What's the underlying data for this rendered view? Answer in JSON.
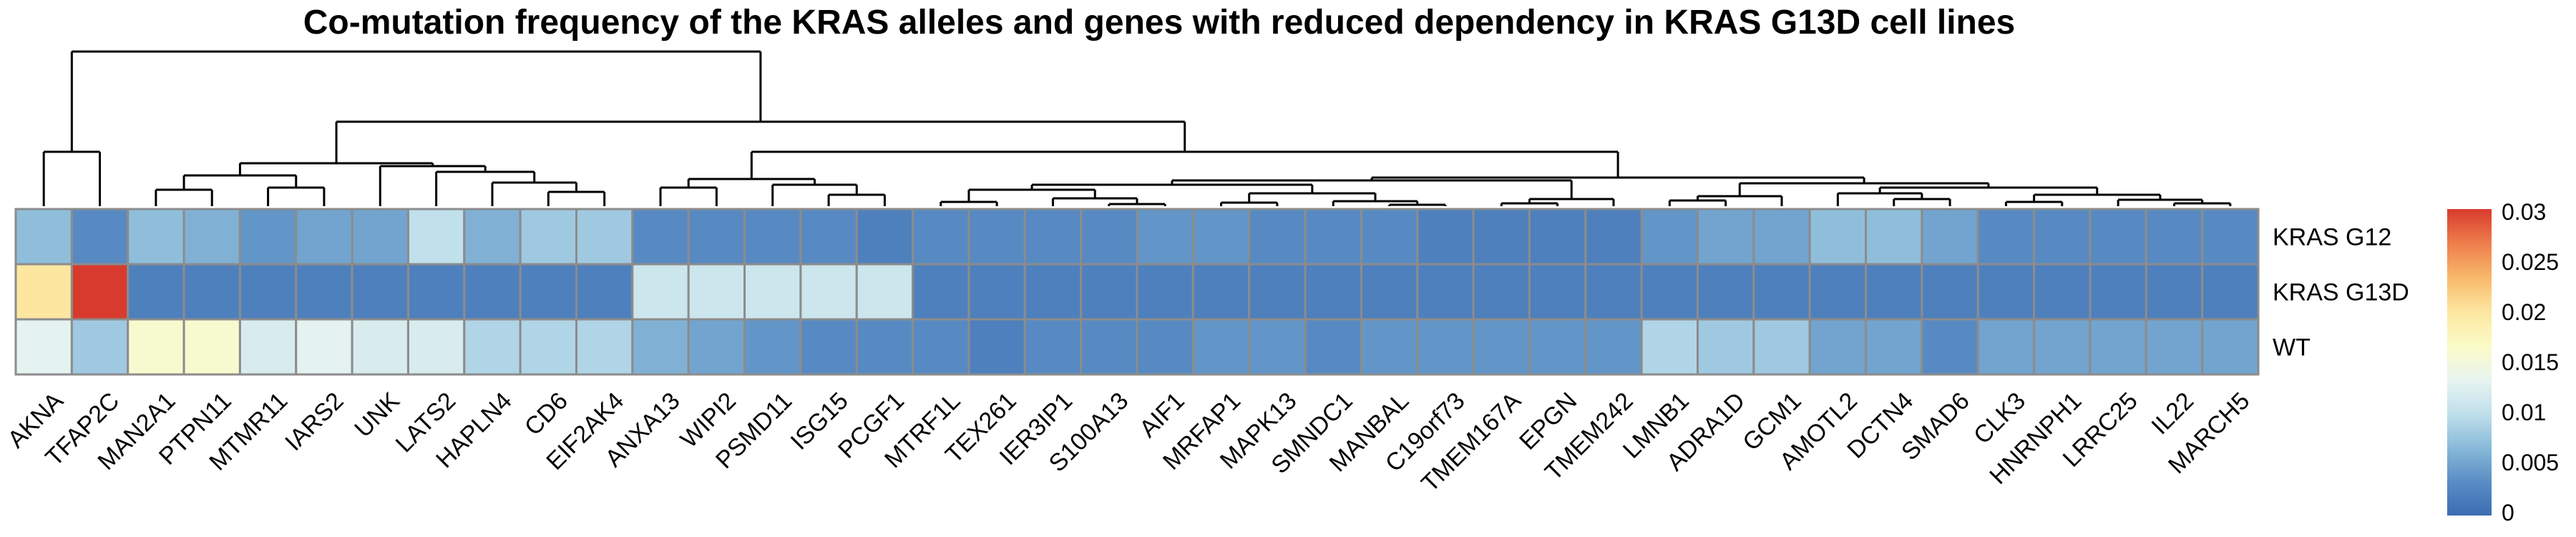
{
  "chart_data": {
    "type": "heatmap",
    "title": "Co-mutation frequency of the KRAS alleles and genes with reduced dependency in KRAS G13D cell lines",
    "rows": [
      "KRAS G12",
      "KRAS G13D",
      "WT"
    ],
    "columns": [
      "AKNA",
      "TFAP2C",
      "MAN2A1",
      "PTPN11",
      "MTMR11",
      "IARS2",
      "UNK",
      "LATS2",
      "HAPLN4",
      "CD6",
      "EIF2AK4",
      "ANXA13",
      "WIPI2",
      "PSMD11",
      "ISG15",
      "PCGF1",
      "MTRF1L",
      "TEX261",
      "IER3IP1",
      "S100A13",
      "AIF1",
      "MRFAP1",
      "MAPK13",
      "SMNDC1",
      "MANBAL",
      "C19orf73",
      "TMEM167A",
      "EPGN",
      "TMEM242",
      "LMNB1",
      "ADRA1D",
      "GCM1",
      "AMOTL2",
      "DCTN4",
      "SMAD6",
      "CLK3",
      "HNRNPH1",
      "LRRC25",
      "IL22",
      "MARCH5"
    ],
    "values": [
      [
        0.007,
        0.003,
        0.007,
        0.006,
        0.004,
        0.005,
        0.005,
        0.01,
        0.006,
        0.008,
        0.008,
        0.003,
        0.003,
        0.003,
        0.003,
        0.002,
        0.003,
        0.003,
        0.003,
        0.003,
        0.004,
        0.004,
        0.003,
        0.003,
        0.003,
        0.002,
        0.002,
        0.002,
        0.002,
        0.004,
        0.005,
        0.005,
        0.007,
        0.007,
        0.005,
        0.003,
        0.003,
        0.003,
        0.003,
        0.003
      ],
      [
        0.02,
        0.03,
        0.002,
        0.002,
        0.002,
        0.002,
        0.002,
        0.002,
        0.002,
        0.002,
        0.002,
        0.011,
        0.011,
        0.011,
        0.011,
        0.011,
        0.002,
        0.002,
        0.002,
        0.002,
        0.002,
        0.002,
        0.002,
        0.002,
        0.002,
        0.002,
        0.002,
        0.002,
        0.002,
        0.002,
        0.002,
        0.002,
        0.002,
        0.002,
        0.002,
        0.002,
        0.002,
        0.002,
        0.002,
        0.002
      ],
      [
        0.013,
        0.008,
        0.016,
        0.016,
        0.012,
        0.013,
        0.012,
        0.012,
        0.009,
        0.009,
        0.009,
        0.006,
        0.005,
        0.004,
        0.003,
        0.003,
        0.003,
        0.002,
        0.003,
        0.003,
        0.003,
        0.004,
        0.004,
        0.003,
        0.004,
        0.004,
        0.004,
        0.004,
        0.004,
        0.009,
        0.008,
        0.008,
        0.005,
        0.005,
        0.003,
        0.005,
        0.005,
        0.005,
        0.005,
        0.005
      ]
    ],
    "legend": {
      "ticks": [
        "0.03",
        "0.025",
        "0.02",
        "0.015",
        "0.01",
        "0.005",
        "0"
      ],
      "tick_values": [
        0.03,
        0.025,
        0.02,
        0.015,
        0.01,
        0.005,
        0
      ],
      "range": [
        0,
        0.03
      ],
      "placement": "right"
    },
    "color_scale": [
      "#3b6db3",
      "#5a8dc4",
      "#89bad9",
      "#c0e0ec",
      "#e8f4f0",
      "#fbfbc6",
      "#fde6a0",
      "#f8b86a",
      "#ee7d4b",
      "#d93a2e"
    ],
    "grid_color": "#8c8c8c",
    "column_dendrogram": true
  }
}
